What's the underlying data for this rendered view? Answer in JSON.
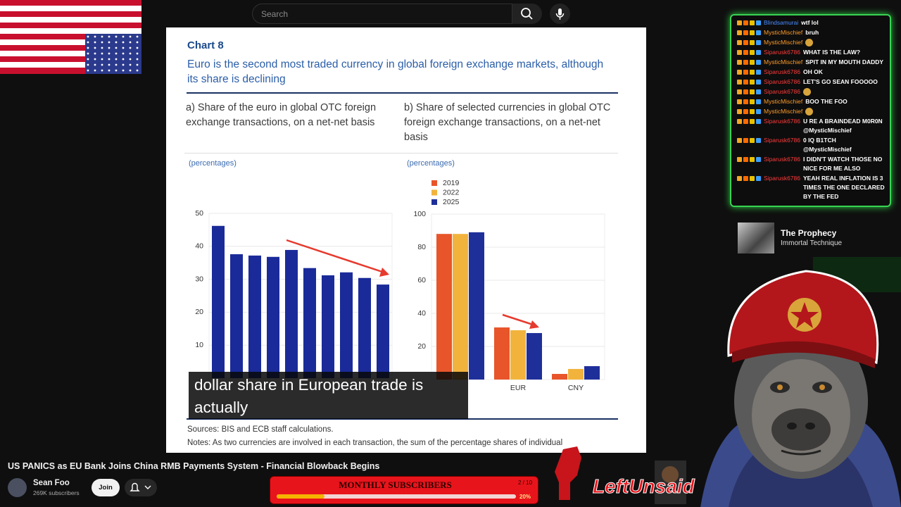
{
  "search": {
    "placeholder": "Search"
  },
  "document": {
    "chart_label": "Chart 8",
    "title": "Euro is the second most traded currency in global foreign exchange markets, although its share is declining",
    "sources": "Sources: BIS and ECB staff calculations.",
    "notes": "Notes: As two currencies are involved in each transaction, the sum of the percentage shares of individual"
  },
  "chart_data": [
    {
      "type": "bar",
      "title": "a) Share of the euro in global OTC foreign exchange transactions, on a net-net basis",
      "unit_label": "(percentages)",
      "values": [
        46.2,
        37.6,
        37.2,
        36.8,
        38.9,
        33.4,
        31.2,
        32.1,
        30.4,
        28.4
      ],
      "color": "#1a2b99",
      "ylim": [
        0,
        50
      ],
      "yticks": [
        10,
        20,
        30,
        40,
        50
      ],
      "grid": true
    },
    {
      "type": "bar",
      "title": "b) Share of selected currencies in global OTC foreign exchange transactions, on a net-net basis",
      "unit_label": "(percentages)",
      "categories": [
        null,
        "EUR",
        "CNY"
      ],
      "series": [
        {
          "name": "2019",
          "color": "#e8552a",
          "values": [
            88,
            31.5,
            3.4
          ]
        },
        {
          "name": "2022",
          "color": "#f2b33d",
          "values": [
            88,
            29.8,
            6.4
          ]
        },
        {
          "name": "2025",
          "color": "#1f2f9a",
          "values": [
            89,
            28.1,
            8.1
          ]
        }
      ],
      "ylim": [
        0,
        100
      ],
      "yticks": [
        20,
        40,
        60,
        80,
        100
      ],
      "grid": true
    }
  ],
  "caption": "dollar share in European trade is actually",
  "video": {
    "title": "US PANICS as EU Bank Joins China RMB Payments System - Financial Blowback Begins",
    "channel": "Sean Foo",
    "subscribers": "269K subscribers",
    "join": "Join"
  },
  "chat": [
    {
      "user": "Blindsamurai",
      "color": "#4a8cff",
      "message": "wtf lol"
    },
    {
      "user": "MysticMischief",
      "color": "#ff9d2a",
      "message": "bruh"
    },
    {
      "user": "MysticMischief",
      "color": "#ff9d2a"
    },
    {
      "user": "Siparusk6786",
      "color": "#ff3b3b",
      "message": "WHAT IS THE LAW?"
    },
    {
      "user": "MysticMischief",
      "color": "#ff9d2a",
      "message": "SPIT IN MY MOUTH DADDY"
    },
    {
      "user": "Siparusk6786",
      "color": "#ff3b3b",
      "message": "OH OK"
    },
    {
      "user": "Siparusk6786",
      "color": "#ff3b3b",
      "message": "LET'S GO SEAN FOOOOO"
    },
    {
      "user": "Siparusk6786",
      "color": "#ff3b3b"
    },
    {
      "user": "MysticMischief",
      "color": "#ff9d2a",
      "message": "BOO THE FOO"
    },
    {
      "user": "MysticMischief",
      "color": "#ff9d2a"
    },
    {
      "user": "Siparusk6786",
      "color": "#ff3b3b",
      "message": "U RE A BRAINDEAD M0R0N @MysticMischief"
    },
    {
      "user": "Siparusk6786",
      "color": "#ff3b3b",
      "message": "0 IQ B1TCH @MysticMischief"
    },
    {
      "user": "Siparusk6786",
      "color": "#ff3b3b",
      "message": "I DIDN'T WATCH THOSE NO NICE FOR ME ALSO"
    },
    {
      "user": "Siparusk6786",
      "color": "#ff3b3b",
      "message": "YEAH REAL INFLATION IS 3 TIMES THE ONE DECLARED BY THE FED"
    }
  ],
  "now_playing": {
    "title": "The Prophecy",
    "artist": "Immortal Technique"
  },
  "overlay": {
    "label": "MONTHLY SUBSCRIBERS",
    "count": "2 / 10",
    "percent": "20%",
    "logo": "LeftUnsaid"
  }
}
